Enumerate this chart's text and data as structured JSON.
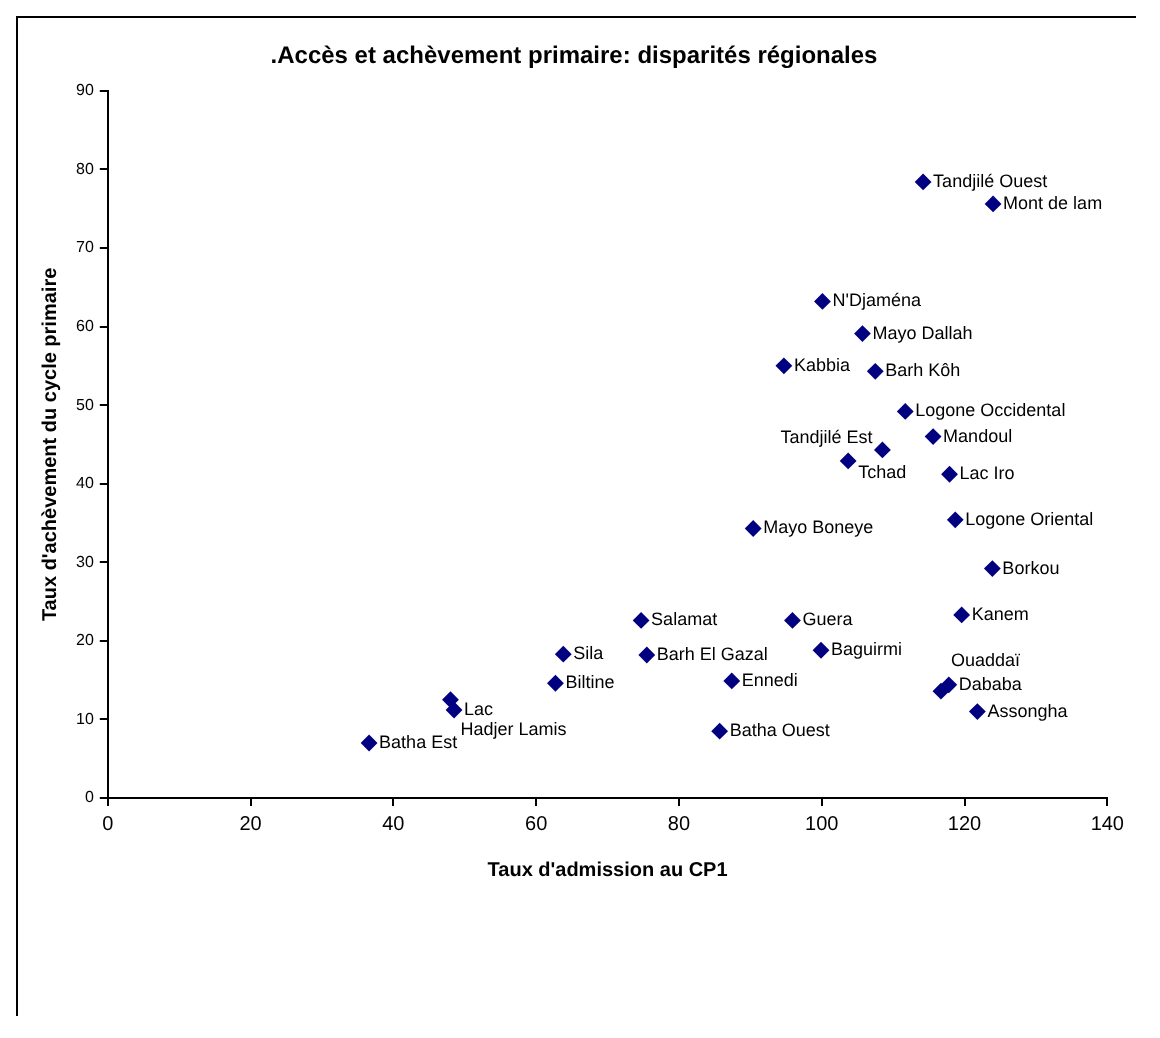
{
  "chart_data": {
    "type": "scatter",
    "title": ".Accès et achèvement primaire: disparités régionales",
    "xlabel": "Taux d'admission au CP1",
    "ylabel": "Taux d'achèvement du cycle primaire",
    "xlim": [
      0,
      140
    ],
    "xticks": [
      0,
      20,
      40,
      60,
      80,
      100,
      120,
      140
    ],
    "ylim": [
      0,
      90
    ],
    "yticks": [
      0,
      10,
      20,
      30,
      40,
      50,
      60,
      70,
      80,
      90
    ],
    "grid": false,
    "legend": false,
    "marker": "diamond",
    "series": [
      {
        "color": "#000080",
        "x": [
          36.6,
          48.5,
          48,
          62.7,
          63.8,
          74.7,
          75.5,
          87.4,
          85.7,
          95.9,
          99.9,
          90.4,
          103.7,
          108.5,
          117.9,
          118.7,
          123.9,
          119.6,
          117.8,
          116.7,
          121.8,
          114.2,
          124,
          100.1,
          105.7,
          94.7,
          107.5,
          111.7,
          115.6
        ],
        "values": [
          7,
          11.2,
          12.5,
          14.6,
          18.3,
          22.6,
          18.2,
          14.9,
          8.5,
          22.6,
          18.8,
          34.3,
          42.9,
          44.3,
          41.2,
          35.4,
          29.2,
          23.3,
          14.4,
          13.6,
          11,
          78.4,
          75.6,
          63.2,
          59.1,
          55,
          54.3,
          49.2,
          46
        ]
      }
    ],
    "annotations": [
      {
        "text": "Batha Est",
        "x": 36.6,
        "y": 7
      },
      {
        "text": "Lac",
        "x": 48.5,
        "y": 11.2
      },
      {
        "text": "Hadjer Lamis",
        "x": 48,
        "y": 12.5
      },
      {
        "text": "Biltine",
        "x": 62.7,
        "y": 14.6
      },
      {
        "text": "Sila",
        "x": 63.8,
        "y": 18.3
      },
      {
        "text": "Salamat",
        "x": 74.7,
        "y": 22.6
      },
      {
        "text": "Barh El Gazal",
        "x": 75.5,
        "y": 18.2
      },
      {
        "text": "Ennedi",
        "x": 87.4,
        "y": 14.9
      },
      {
        "text": "Batha Ouest",
        "x": 85.7,
        "y": 8.5
      },
      {
        "text": "Guera",
        "x": 95.9,
        "y": 22.6
      },
      {
        "text": "Baguirmi",
        "x": 99.9,
        "y": 18.8
      },
      {
        "text": "Mayo Boneye",
        "x": 90.4,
        "y": 34.3
      },
      {
        "text": "Tchad",
        "x": 103.7,
        "y": 42.9
      },
      {
        "text": "Tandjilé Est",
        "x": 108.5,
        "y": 44.3
      },
      {
        "text": "Lac Iro",
        "x": 117.9,
        "y": 41.2
      },
      {
        "text": "Logone Oriental",
        "x": 118.7,
        "y": 35.4
      },
      {
        "text": "Borkou",
        "x": 123.9,
        "y": 29.2
      },
      {
        "text": "Kanem",
        "x": 119.6,
        "y": 23.3
      },
      {
        "text": "Dababa",
        "x": 117.8,
        "y": 14.4
      },
      {
        "text": "Ouaddaï",
        "x": 116.7,
        "y": 13.6
      },
      {
        "text": "Assongha",
        "x": 121.8,
        "y": 11
      },
      {
        "text": "Tandjilé Ouest",
        "x": 114.2,
        "y": 78.4
      },
      {
        "text": "Mont de lam",
        "x": 124,
        "y": 75.6
      },
      {
        "text": "N'Djaména",
        "x": 100.1,
        "y": 63.2
      },
      {
        "text": "Mayo Dallah",
        "x": 105.7,
        "y": 59.1
      },
      {
        "text": "Kabbia",
        "x": 94.7,
        "y": 55
      },
      {
        "text": "Barh Kôh",
        "x": 107.5,
        "y": 54.3
      },
      {
        "text": "Logone Occidental",
        "x": 111.7,
        "y": 49.2
      },
      {
        "text": "Mandoul",
        "x": 115.6,
        "y": 46
      }
    ]
  }
}
